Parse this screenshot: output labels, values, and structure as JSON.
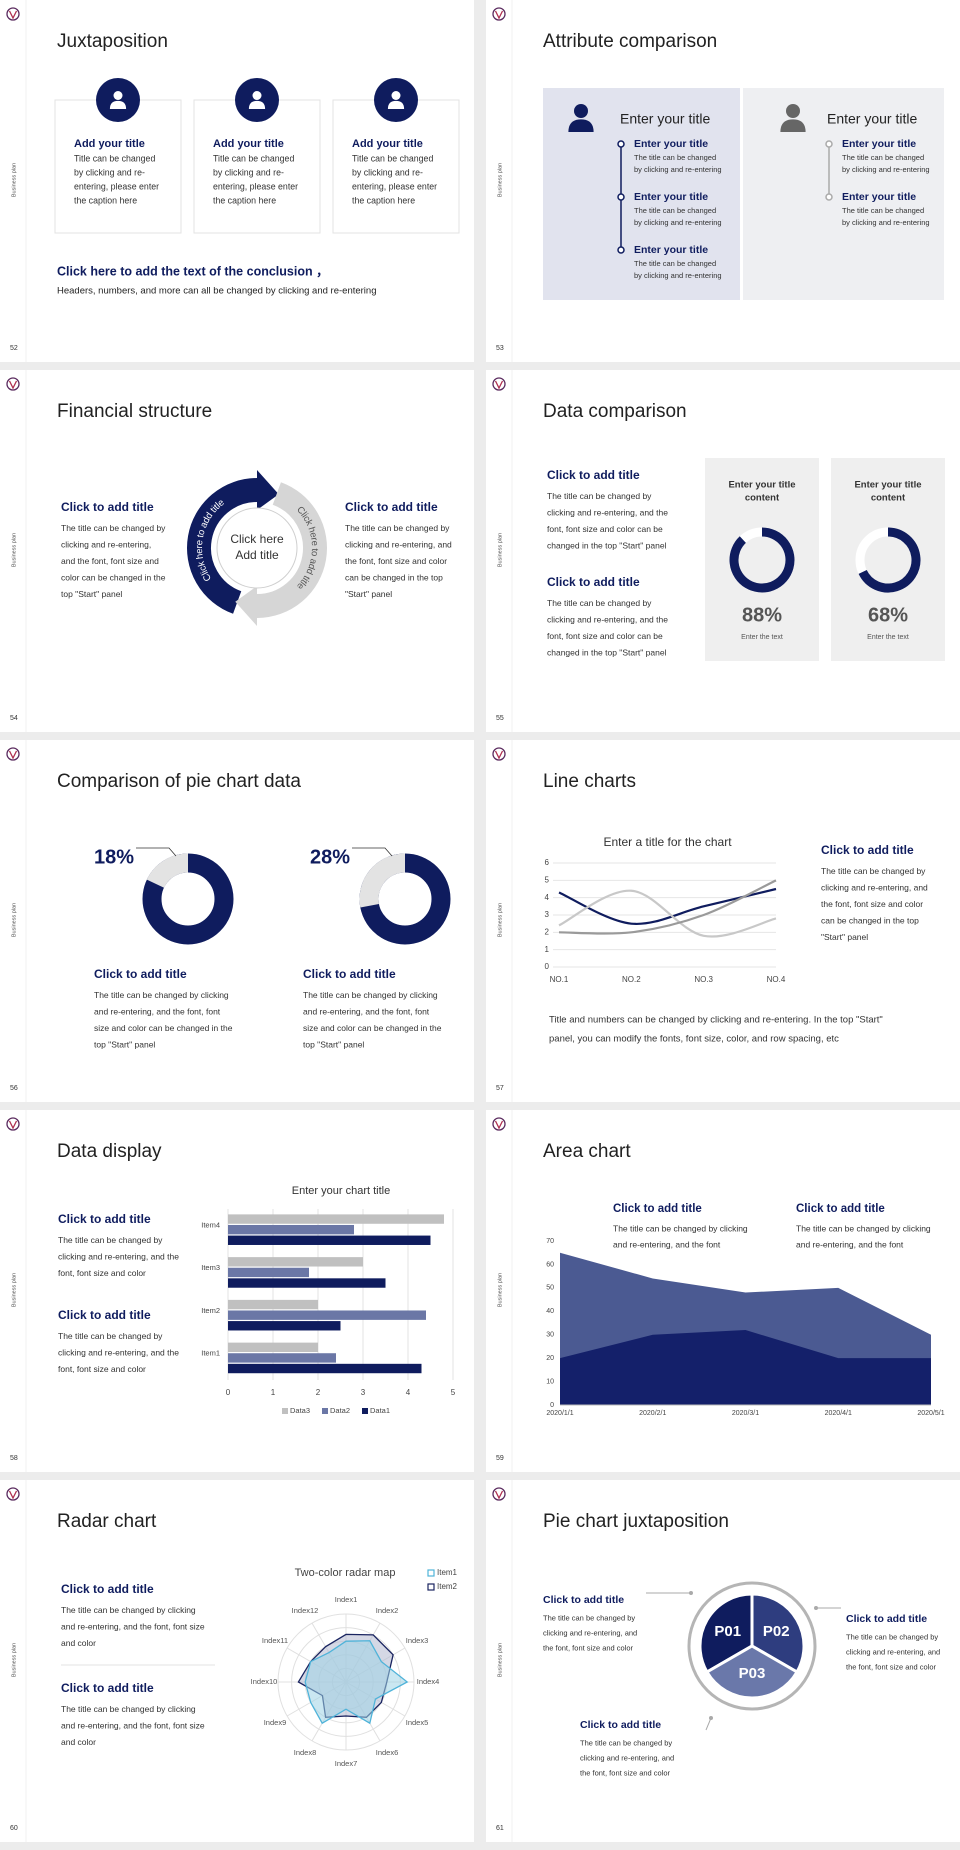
{
  "slides": [
    {
      "number": "52",
      "side_label": "Business plan",
      "title": "Juxtaposition",
      "cards": [
        {
          "title": "Add your title",
          "text": [
            "Title can be changed",
            "by clicking and re-",
            "entering, please enter",
            "the caption here"
          ]
        },
        {
          "title": "Add your title",
          "text": [
            "Title can be changed",
            "by clicking and re-",
            "entering, please enter",
            "the caption here"
          ]
        },
        {
          "title": "Add your title",
          "text": [
            "Title can be changed",
            "by clicking and re-",
            "entering, please enter",
            "the caption here"
          ]
        }
      ],
      "conclusion": {
        "title": "Click here to add the text of the conclusion ，",
        "text": "Headers, numbers, and more can all be changed by clicking and re-entering"
      }
    },
    {
      "number": "53",
      "side_label": "Business plan",
      "title": "Attribute comparison",
      "panels": [
        {
          "heading": "Enter your title",
          "items": [
            {
              "title": "Enter your title",
              "text": [
                "The title can be changed",
                "by clicking and re-entering"
              ]
            },
            {
              "title": "Enter your title",
              "text": [
                "The title can be changed",
                "by clicking and re-entering"
              ]
            },
            {
              "title": "Enter your title",
              "text": [
                "The title can be changed",
                "by clicking and re-entering"
              ]
            }
          ]
        },
        {
          "heading": "Enter your title",
          "items": [
            {
              "title": "Enter your title",
              "text": [
                "The title can be changed",
                "by clicking and re-entering"
              ]
            },
            {
              "title": "Enter your title",
              "text": [
                "The title can be changed",
                "by clicking and re-entering"
              ]
            }
          ]
        }
      ]
    },
    {
      "number": "54",
      "side_label": "Business plan",
      "title": "Financial structure",
      "left": {
        "title": "Click to add title",
        "text": [
          "The title can be changed by",
          "clicking and re-entering,",
          "and the font, font size and",
          "color can be changed in the",
          "top \"Start\" panel"
        ]
      },
      "center": [
        "Click here",
        "Add title"
      ],
      "arc_labels": [
        "Click here to add title",
        "Click here to add title"
      ],
      "right": {
        "title": "Click to add title",
        "text": [
          "The title can be changed by",
          "clicking and re-entering, and",
          "the font, font size and color",
          "can be changed in the top",
          "\"Start\" panel"
        ]
      }
    },
    {
      "number": "55",
      "side_label": "Business plan",
      "title": "Data comparison",
      "blocks": [
        {
          "title": "Click to add title",
          "text": [
            "The title can be changed by",
            "clicking and re-entering, and the",
            "font, font size and color can be",
            "changed in the top \"Start\" panel"
          ]
        },
        {
          "title": "Click to add title",
          "text": [
            "The title can be changed by",
            "clicking and re-entering, and the",
            "font, font size and color can be",
            "changed in the top \"Start\" panel"
          ]
        }
      ],
      "gauges": [
        {
          "heading": [
            "Enter your title",
            "content"
          ],
          "value": 88,
          "value_label": "88%",
          "caption": "Enter the text"
        },
        {
          "heading": [
            "Enter your title",
            "content"
          ],
          "value": 68,
          "value_label": "68%",
          "caption": "Enter the text"
        }
      ]
    },
    {
      "number": "56",
      "side_label": "Business plan",
      "title": "Comparison of pie chart data",
      "pies": [
        {
          "value": 18,
          "value_label": "18%",
          "title": "Click to add title",
          "text": [
            "The title can be changed by clicking",
            "and re-entering, and the font, font",
            "size and color can be changed in the",
            "top \"Start\" panel"
          ]
        },
        {
          "value": 28,
          "value_label": "28%",
          "title": "Click to add title",
          "text": [
            "The title can be changed by clicking",
            "and re-entering, and the font, font",
            "size and color can be changed in the",
            "top \"Start\" panel"
          ]
        }
      ]
    },
    {
      "number": "57",
      "side_label": "Business plan",
      "title": "Line charts",
      "chart": {
        "type": "line",
        "title": "Enter a title for the chart",
        "categories": [
          "NO.1",
          "NO.2",
          "NO.3",
          "NO.4"
        ],
        "ylim": [
          0,
          6
        ],
        "yticks": [
          0,
          1,
          2,
          3,
          4,
          5,
          6
        ],
        "grid": true,
        "smooth": true,
        "series": [
          {
            "color": "#0f1c5e",
            "values": [
              4.3,
              2.5,
              3.5,
              4.5
            ]
          },
          {
            "color": "#c8c8c8",
            "values": [
              2.4,
              4.4,
              1.8,
              2.8
            ]
          },
          {
            "color": "#9a9a9a",
            "values": [
              2,
              2,
              3,
              5
            ]
          }
        ]
      },
      "side": {
        "title": "Click to add title",
        "text": [
          "The title can be changed by",
          "clicking and re-entering, and",
          "the font, font size and color",
          "can be changed in the top",
          "\"Start\" panel"
        ]
      },
      "bottom": [
        "Title and numbers can be changed by clicking and re-entering. In the top \"Start\"",
        "panel, you can modify the fonts, font size, color, and row spacing, etc"
      ]
    },
    {
      "number": "58",
      "side_label": "Business plan",
      "title": "Data display",
      "blocks": [
        {
          "title": "Click to add title",
          "text": [
            "The title can be changed by",
            "clicking and re-entering, and the",
            "font, font size and color"
          ]
        },
        {
          "title": "Click to add title",
          "text": [
            "The title can be changed by",
            "clicking and re-entering, and the",
            "font, font size and color"
          ]
        }
      ],
      "chart": {
        "type": "barh",
        "title": "Enter your chart title",
        "categories": [
          "Item1",
          "Item2",
          "Item3",
          "Item4"
        ],
        "xlim": [
          0,
          5
        ],
        "xticks": [
          0,
          1,
          2,
          3,
          4,
          5
        ],
        "grid": true,
        "series": [
          {
            "name": "Data3",
            "color": "#c0c0c0",
            "values": [
              2,
              2,
              3,
              4.8
            ]
          },
          {
            "name": "Data2",
            "color": "#6b77a6",
            "values": [
              2.4,
              4.4,
              1.8,
              2.8
            ]
          },
          {
            "name": "Data1",
            "color": "#0f1c5e",
            "values": [
              4.3,
              2.5,
              3.5,
              4.5
            ]
          }
        ]
      }
    },
    {
      "number": "59",
      "side_label": "Business plan",
      "title": "Area chart",
      "blocks": [
        {
          "title": "Click to add title",
          "text": [
            "The title can be changed by clicking",
            "and re-entering, and the font"
          ]
        },
        {
          "title": "Click to add title",
          "text": [
            "The title can be changed by clicking",
            "and re-entering, and the font"
          ]
        }
      ],
      "chart": {
        "type": "area",
        "x": [
          "2020/1/1",
          "2020/2/1",
          "2020/3/1",
          "2020/4/1",
          "2020/5/1"
        ],
        "ylim": [
          0,
          70
        ],
        "yticks": [
          0,
          10,
          20,
          30,
          40,
          50,
          60,
          70
        ],
        "series": [
          {
            "color": "#4b5a92",
            "values": [
              65,
              54,
              48,
              50,
              30
            ]
          },
          {
            "color": "#14206a",
            "values": [
              20,
              30,
              32,
              20,
              20
            ]
          }
        ]
      }
    },
    {
      "number": "60",
      "side_label": "Business plan",
      "title": "Radar chart",
      "blocks": [
        {
          "title": "Click to add title",
          "text": [
            "The title can be changed by clicking",
            "and re-entering, and the font, font size",
            "and color"
          ]
        },
        {
          "title": "Click to add title",
          "text": [
            "The title can be changed by clicking",
            "and re-entering, and the font, font size",
            "and color"
          ]
        }
      ],
      "chart": {
        "type": "radar",
        "title": "Two-color radar map",
        "indicators": [
          "Index1",
          "Index2",
          "Index3",
          "Index4",
          "Index5",
          "Index6",
          "Index7",
          "Index8",
          "Index9",
          "Index10",
          "Index11",
          "Index12"
        ],
        "rlim": [
          0,
          5
        ],
        "rticks": [
          1,
          2,
          3,
          4,
          5
        ],
        "series": [
          {
            "name": "Item1",
            "color": "#4fb3d9",
            "values": [
              3,
              3.5,
              3,
              4.5,
              2.5,
              3.5,
              2,
              3.5,
              3,
              3,
              3,
              2.5
            ]
          },
          {
            "name": "Item2",
            "color": "#1a2460",
            "values": [
              3.5,
              4,
              4,
              3,
              3,
              3,
              2.5,
              3,
              2,
              3.5,
              3,
              3
            ]
          }
        ]
      }
    },
    {
      "number": "61",
      "side_label": "Business plan",
      "title": "Pie chart juxtaposition",
      "segments": [
        "P01",
        "P02",
        "P03"
      ],
      "blocks": [
        {
          "title": "Click to add title",
          "text": [
            "The title can be changed by",
            "clicking and re-entering, and",
            "the font, font size and color"
          ]
        },
        {
          "title": "Click to add title",
          "text": [
            "The title can be changed by",
            "clicking and re-entering, and",
            "the font, font size and color"
          ]
        },
        {
          "title": "Click to add title",
          "text": [
            "The title can be changed by",
            "clicking and re-entering, and",
            "the font, font size and color"
          ]
        }
      ]
    }
  ]
}
